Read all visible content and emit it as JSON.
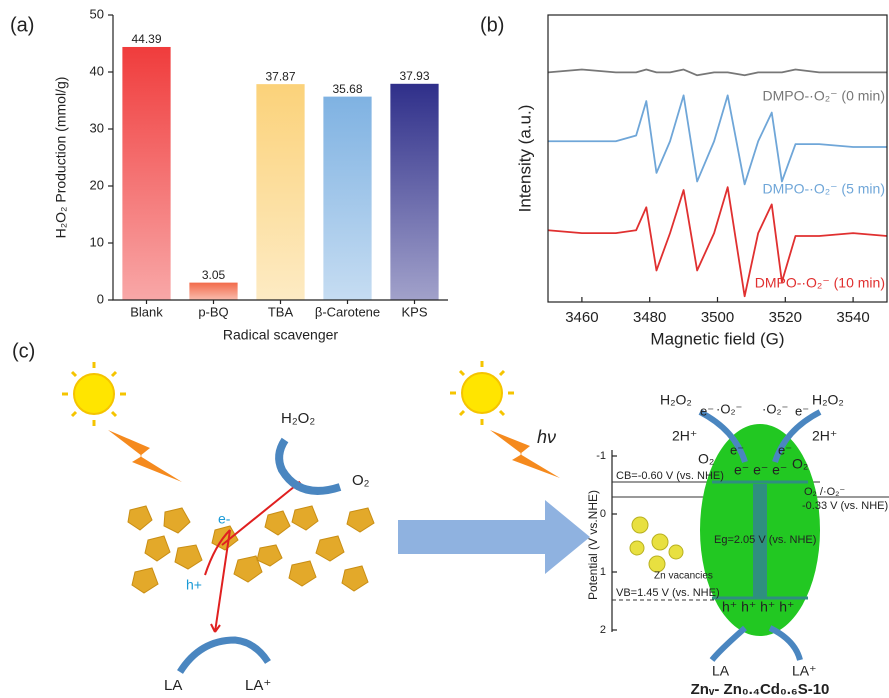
{
  "chart_data": [
    {
      "type": "bar",
      "label": "(a)",
      "ylabel": "H₂O₂ Production (mmol/g)",
      "xlabel": "Radical scavenger",
      "categories": [
        "Blank",
        "p-BQ",
        "TBA",
        "β-Carotene",
        "KPS"
      ],
      "values": [
        44.39,
        3.05,
        37.87,
        35.68,
        37.93
      ],
      "colors": [
        "#f03c3c",
        "#f26a4a",
        "#fbd27a",
        "#7fb2e2",
        "#2f2f8a"
      ],
      "ylim": [
        0,
        50
      ],
      "yticks": [
        0,
        10,
        20,
        30,
        40,
        50
      ]
    },
    {
      "type": "line",
      "label": "(b)",
      "ylabel": "Intensity (a.u.)",
      "xlabel": "Magnetic field (G)",
      "x": [
        3450,
        3460,
        3470,
        3476,
        3479,
        3482,
        3486,
        3490,
        3494,
        3499,
        3503,
        3508,
        3512,
        3516,
        3519,
        3523,
        3530,
        3540,
        3550
      ],
      "series": [
        {
          "name": "DMPO-·O₂⁻ (0 min)",
          "color": "#777777",
          "values": [
            8.0,
            8.1,
            8.0,
            8.0,
            8.1,
            8.0,
            8.0,
            8.1,
            7.9,
            8.0,
            8.0,
            7.9,
            8.0,
            8.0,
            8.0,
            8.1,
            8.0,
            8.0,
            8.0
          ]
        },
        {
          "name": "DMPO-·O₂⁻ (5 min)",
          "color": "#6fa6d8",
          "values": [
            5.6,
            5.6,
            5.6,
            5.8,
            7.0,
            4.5,
            5.6,
            7.2,
            4.2,
            5.6,
            7.2,
            4.1,
            5.6,
            6.6,
            4.2,
            5.5,
            5.5,
            5.4,
            5.4
          ]
        },
        {
          "name": "DMPO-·O₂⁻ (10 min)",
          "color": "#e03030",
          "values": [
            2.5,
            2.4,
            2.4,
            2.5,
            3.3,
            1.1,
            2.4,
            3.9,
            1.1,
            2.4,
            4.0,
            0.2,
            2.4,
            3.4,
            0.7,
            2.3,
            2.3,
            2.4,
            2.3
          ]
        }
      ],
      "xlim": [
        3450,
        3550
      ],
      "xticks": [
        3460,
        3480,
        3500,
        3520,
        3540
      ],
      "ylim": [
        0,
        10
      ]
    }
  ],
  "diagram": {
    "label": "(c)",
    "left": {
      "h2o2": "H₂O₂",
      "o2": "O₂",
      "electron": "e-",
      "hole": "h+",
      "la": "LA",
      "la_plus": "LA⁺"
    },
    "light": "hν",
    "right": {
      "h2o2_left": "H₂O₂",
      "e_left": "e⁻",
      "o2_rad_left": "·O₂⁻",
      "h_left": "2H⁺",
      "o2_rad_right": "·O₂⁻",
      "e_right": "e⁻",
      "h2o2_right": "H₂O₂",
      "h_right": "2H⁺",
      "e_l2": "e⁻",
      "e_r2": "e⁻",
      "o2_left": "O₂",
      "o2_right": "O₂",
      "cb_electrons": "e⁻ e⁻ e⁻",
      "cb": "CB=-0.60 V (vs. NHE)",
      "redox": "O₂ /·O₂⁻",
      "redox_v": "-0.33 V (vs. NHE)",
      "eg": "Eg=2.05 V (vs. NHE)",
      "vacancies": "Zn vacancies",
      "vb": "VB=1.45 V (vs. NHE)",
      "vb_holes": "h⁺ h⁺ h⁺ h⁺",
      "la": "LA",
      "la_plus": "LA⁺",
      "axis_label": "Potential (V vs.NHE)",
      "axis_ticks": [
        "-1",
        "0",
        "1",
        "2"
      ],
      "title": "Znᵥ- Zn₀.₄Cd₀.₆S-10"
    }
  }
}
